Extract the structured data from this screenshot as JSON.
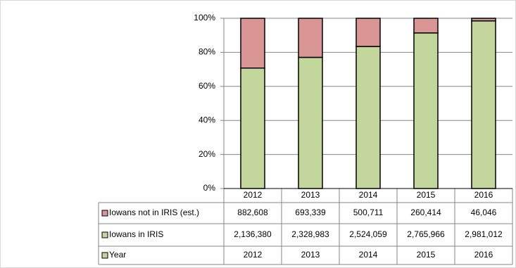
{
  "chart_data": {
    "type": "bar",
    "stack": "percent",
    "categories": [
      "2012",
      "2013",
      "2014",
      "2015",
      "2016"
    ],
    "series": [
      {
        "name": "Iowans in IRIS",
        "color": "#c3d69b",
        "values": [
          2136380,
          2328983,
          2524059,
          2765966,
          2981012
        ],
        "value_labels": [
          "2,136,380",
          "2,328,983",
          "2,524,059",
          "2,765,966",
          "2,981,012"
        ]
      },
      {
        "name": "Iowans not in IRIS (est.)",
        "color": "#d99694",
        "values": [
          882608,
          693339,
          500711,
          260414,
          46046
        ],
        "value_labels": [
          "882,608",
          "693,339",
          "500,711",
          "260,414",
          "46,046"
        ]
      }
    ],
    "year_row": {
      "name": "Year",
      "color": "#c3d69b",
      "values": [
        2012,
        2013,
        2014,
        2015,
        2016
      ]
    },
    "ylim": [
      0,
      100
    ],
    "yticks": [
      {
        "value": 0,
        "label": "0%"
      },
      {
        "value": 20,
        "label": "20%"
      },
      {
        "value": 40,
        "label": "40%"
      },
      {
        "value": 60,
        "label": "60%"
      },
      {
        "value": 80,
        "label": "80%"
      },
      {
        "value": 100,
        "label": "100%"
      }
    ],
    "grid": true
  }
}
